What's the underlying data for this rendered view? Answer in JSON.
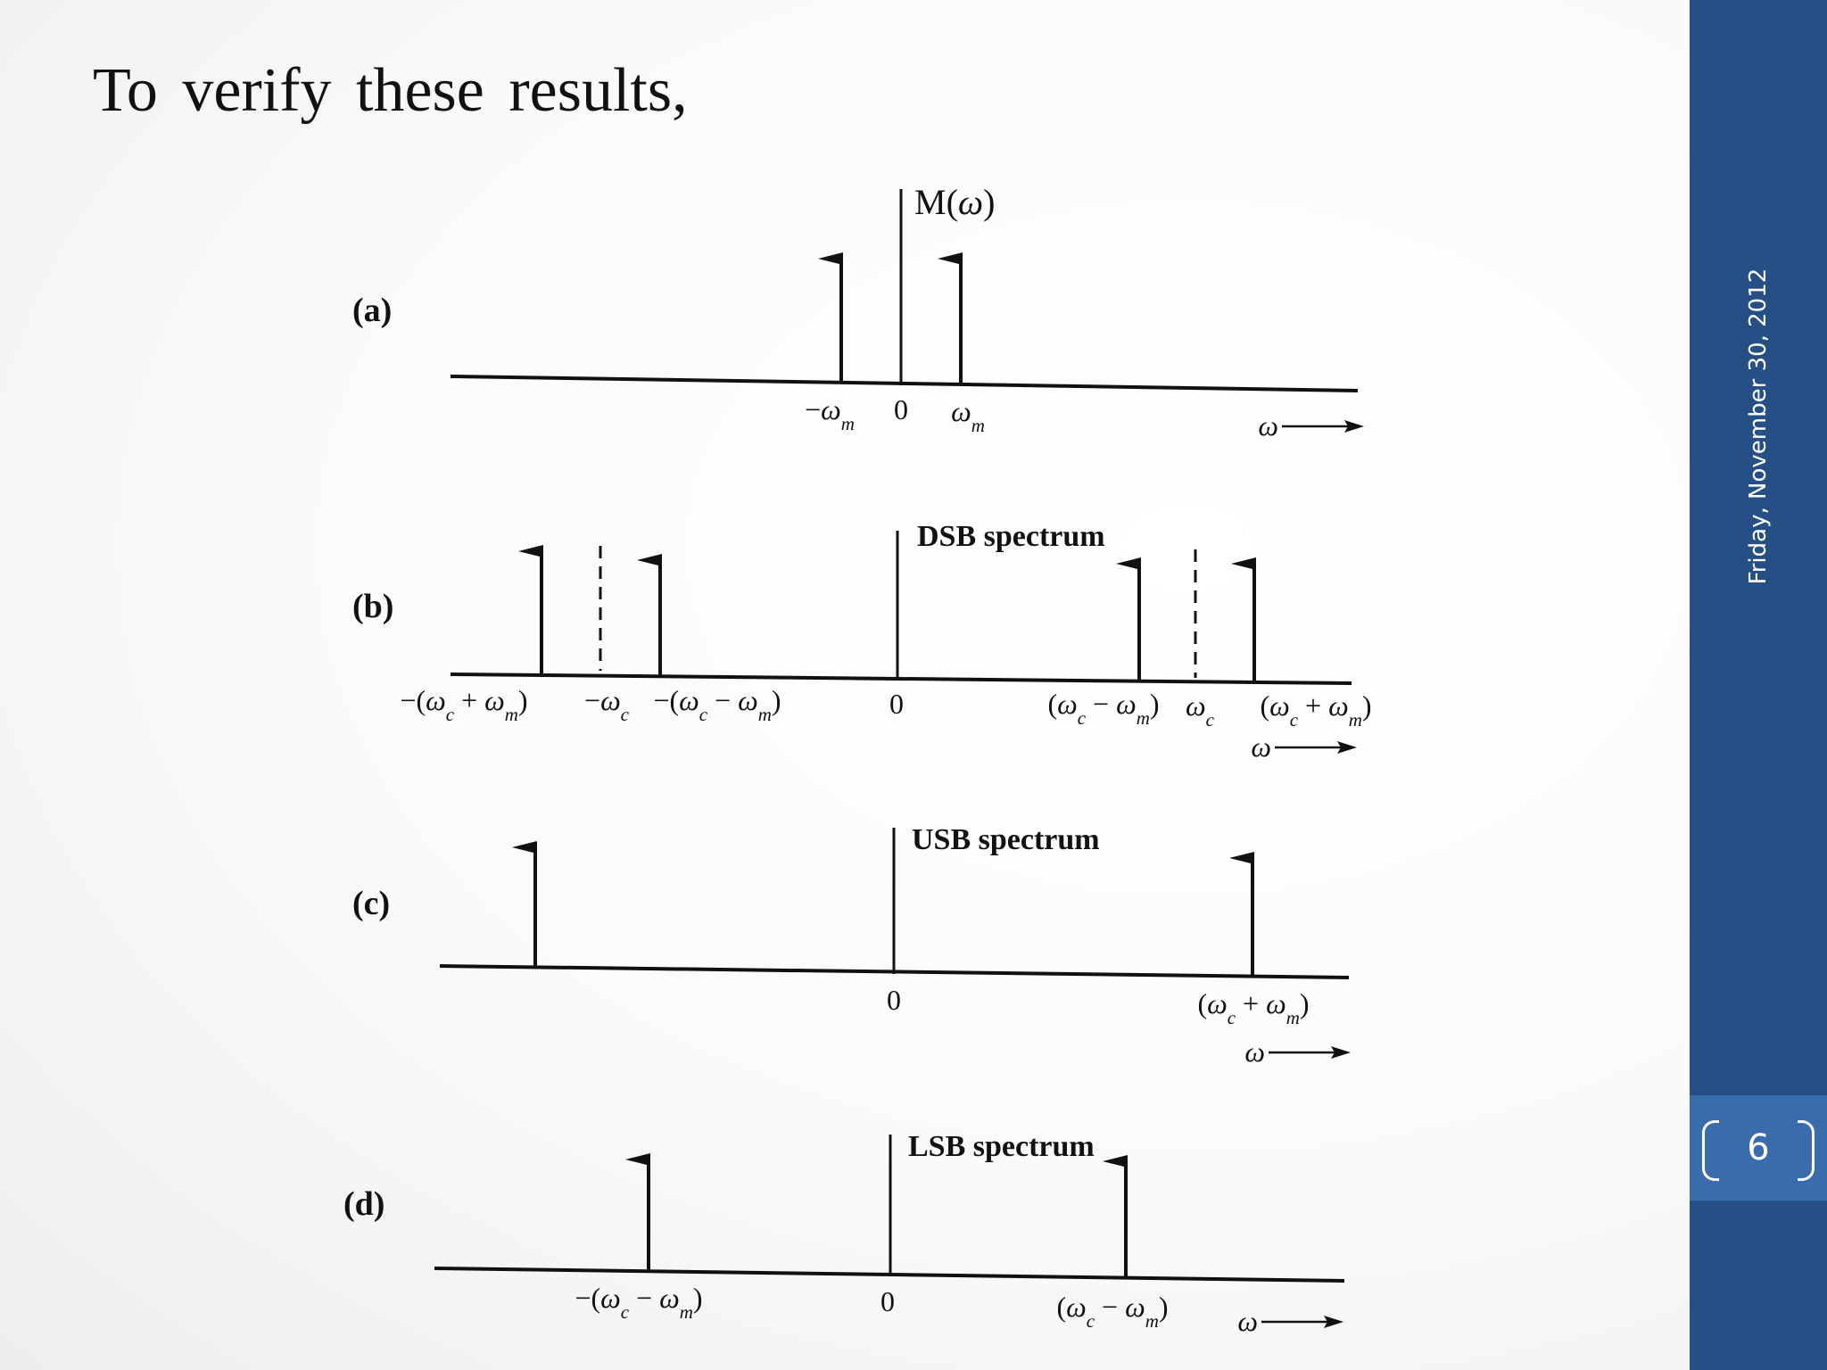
{
  "slide": {
    "heading": "To verify these results,",
    "date": "Friday, November 30, 2012",
    "page_number": "6",
    "sidebar_color": "#264f86",
    "page_box_color": "#3a6bab"
  },
  "figure": {
    "panels": [
      {
        "id": "a",
        "label": "(a)",
        "title": "M(ω)",
        "tick_labels": [
          "−ωm",
          "0",
          "ωm"
        ],
        "axis_label": "ω"
      },
      {
        "id": "b",
        "label": "(b)",
        "title": "DSB spectrum",
        "tick_labels": [
          "−(ωc + ωm)",
          "−ωc",
          "−(ωc − ωm)",
          "0",
          "(ωc − ωm)",
          "ωc",
          "(ωc + ωm)"
        ],
        "axis_label": "ω"
      },
      {
        "id": "c",
        "label": "(c)",
        "title": "USB spectrum",
        "tick_labels": [
          "0",
          "(ωc + ωm)"
        ],
        "axis_label": "ω"
      },
      {
        "id": "d",
        "label": "(d)",
        "title": "LSB spectrum",
        "tick_labels": [
          "−(ωc − ωm)",
          "0",
          "(ωc − ωm)"
        ],
        "axis_label": "ω"
      }
    ]
  }
}
